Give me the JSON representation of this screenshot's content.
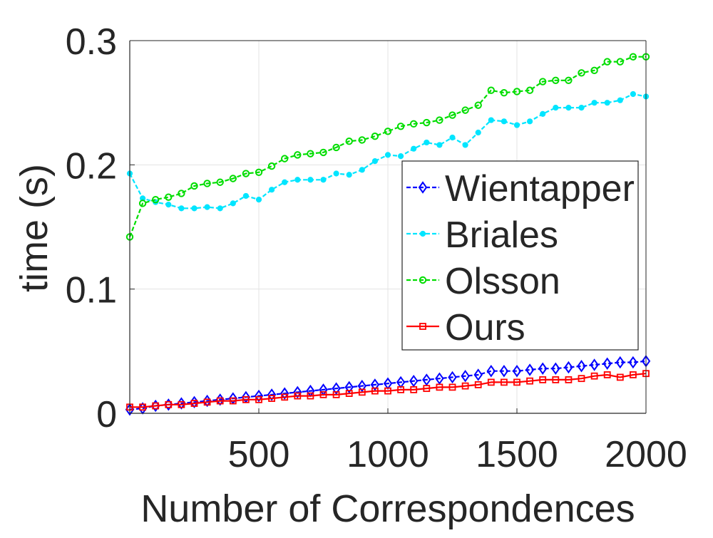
{
  "chart_data": {
    "type": "line",
    "title": "",
    "xlabel": "Number of Correspondences",
    "ylabel": "time (s)",
    "xlim": [
      0,
      2000
    ],
    "ylim": [
      0,
      0.3
    ],
    "xticks": [
      500,
      1000,
      1500,
      2000
    ],
    "xtick_labels": [
      "500",
      "1000",
      "1500",
      "2000"
    ],
    "yticks": [
      0,
      0.1,
      0.2,
      0.3
    ],
    "ytick_labels": [
      "0",
      "0.1",
      "0.2",
      "0.3"
    ],
    "grid": true,
    "legend_position": "center-right",
    "x": [
      0,
      50,
      100,
      150,
      200,
      250,
      300,
      350,
      400,
      450,
      500,
      550,
      600,
      650,
      700,
      750,
      800,
      850,
      900,
      950,
      1000,
      1050,
      1100,
      1150,
      1200,
      1250,
      1300,
      1350,
      1400,
      1450,
      1500,
      1550,
      1600,
      1650,
      1700,
      1750,
      1800,
      1850,
      1900,
      1950,
      2000
    ],
    "series": [
      {
        "name": "Wientapper",
        "color": "#0000ff",
        "dash": "dashed",
        "marker": "diamond",
        "values": [
          0.003,
          0.004,
          0.006,
          0.007,
          0.008,
          0.009,
          0.01,
          0.011,
          0.012,
          0.013,
          0.014,
          0.015,
          0.016,
          0.017,
          0.018,
          0.019,
          0.02,
          0.021,
          0.022,
          0.023,
          0.024,
          0.025,
          0.026,
          0.027,
          0.028,
          0.029,
          0.03,
          0.031,
          0.034,
          0.034,
          0.034,
          0.035,
          0.036,
          0.036,
          0.037,
          0.038,
          0.039,
          0.04,
          0.041,
          0.041,
          0.042
        ]
      },
      {
        "name": "Briales",
        "color": "#00e5ff",
        "dash": "dashed",
        "marker": "dot",
        "values": [
          0.193,
          0.173,
          0.17,
          0.168,
          0.165,
          0.165,
          0.166,
          0.165,
          0.169,
          0.175,
          0.172,
          0.18,
          0.186,
          0.188,
          0.188,
          0.188,
          0.193,
          0.192,
          0.196,
          0.203,
          0.208,
          0.207,
          0.213,
          0.218,
          0.216,
          0.222,
          0.216,
          0.226,
          0.236,
          0.235,
          0.232,
          0.235,
          0.241,
          0.246,
          0.246,
          0.246,
          0.25,
          0.25,
          0.252,
          0.257,
          0.255
        ]
      },
      {
        "name": "Olsson",
        "color": "#00dd00",
        "dash": "dashed",
        "marker": "circle",
        "values": [
          0.142,
          0.169,
          0.172,
          0.174,
          0.177,
          0.183,
          0.185,
          0.186,
          0.189,
          0.193,
          0.194,
          0.199,
          0.205,
          0.208,
          0.209,
          0.21,
          0.214,
          0.219,
          0.22,
          0.223,
          0.227,
          0.231,
          0.233,
          0.234,
          0.236,
          0.24,
          0.244,
          0.248,
          0.26,
          0.258,
          0.259,
          0.26,
          0.267,
          0.268,
          0.268,
          0.274,
          0.276,
          0.283,
          0.283,
          0.287,
          0.287
        ]
      },
      {
        "name": "Ours",
        "color": "#ff0000",
        "dash": "solid",
        "marker": "square",
        "values": [
          0.005,
          0.005,
          0.006,
          0.007,
          0.007,
          0.008,
          0.009,
          0.01,
          0.01,
          0.011,
          0.011,
          0.012,
          0.013,
          0.014,
          0.014,
          0.015,
          0.015,
          0.016,
          0.017,
          0.018,
          0.018,
          0.019,
          0.019,
          0.02,
          0.021,
          0.021,
          0.022,
          0.023,
          0.025,
          0.025,
          0.025,
          0.026,
          0.027,
          0.027,
          0.027,
          0.028,
          0.03,
          0.031,
          0.029,
          0.031,
          0.032
        ]
      }
    ]
  }
}
